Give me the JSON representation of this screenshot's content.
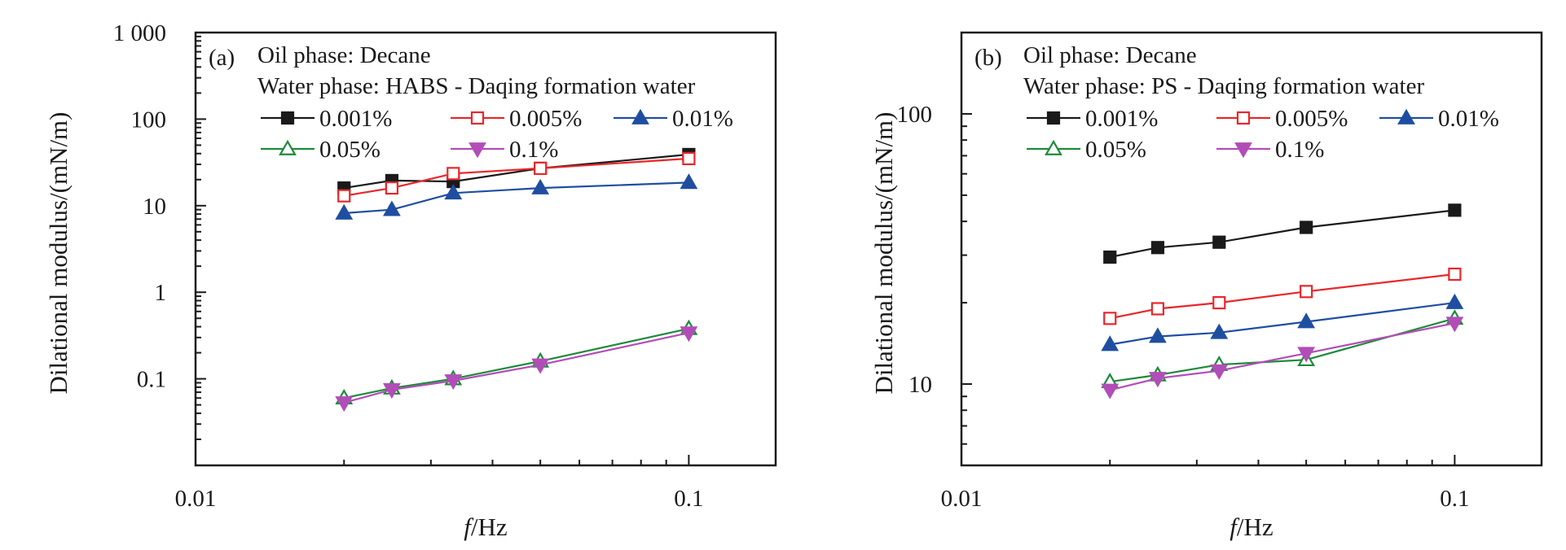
{
  "chart_data": [
    {
      "type": "line",
      "panel_label": "(a)",
      "info_lines": [
        "Oil phase: Decane",
        "Water phase: HABS - Daqing formation water"
      ],
      "xlabel_italic": "f",
      "xlabel_rest": "/Hz",
      "ylabel": "Dilational modulus/(mN/m)",
      "x_scale": "log",
      "y_scale": "log",
      "xlim": [
        0.01,
        0.15
      ],
      "ylim": [
        0.01,
        1000
      ],
      "x_ticks": [
        {
          "value": 0.01,
          "label": "0.01"
        },
        {
          "value": 0.1,
          "label": "0.1"
        }
      ],
      "y_ticks": [
        {
          "value": 0.1,
          "label": "0.1"
        },
        {
          "value": 1,
          "label": "1"
        },
        {
          "value": 10,
          "label": "10"
        },
        {
          "value": 100,
          "label": "100"
        },
        {
          "value": 1000,
          "label": "1 000"
        }
      ],
      "legend_placement": "top-left",
      "x": [
        0.02,
        0.025,
        0.0333,
        0.05,
        0.1
      ],
      "series": [
        {
          "name": "0.001%",
          "color": "#1a1a1a",
          "marker": "square-filled",
          "values": [
            16,
            19.5,
            19,
            27,
            39
          ]
        },
        {
          "name": "0.005%",
          "color": "#e8272b",
          "marker": "square-open",
          "values": [
            13,
            16,
            23.5,
            27,
            35
          ]
        },
        {
          "name": "0.01%",
          "color": "#1f4ea1",
          "marker": "triangle-up-filled",
          "values": [
            8.2,
            9,
            14,
            16,
            18.5
          ]
        },
        {
          "name": "0.05%",
          "color": "#1d8a3a",
          "marker": "triangle-up-open",
          "values": [
            0.06,
            0.078,
            0.1,
            0.16,
            0.38
          ]
        },
        {
          "name": "0.1%",
          "color": "#b24db8",
          "marker": "triangle-down-filled",
          "values": [
            0.053,
            0.075,
            0.095,
            0.145,
            0.34
          ]
        }
      ]
    },
    {
      "type": "line",
      "panel_label": "(b)",
      "info_lines": [
        "Oil phase: Decane",
        "Water phase: PS - Daqing formation water"
      ],
      "xlabel_italic": "f",
      "xlabel_rest": "/Hz",
      "ylabel": "Dilational modulus/(mN/m)",
      "x_scale": "log",
      "y_scale": "log",
      "xlim": [
        0.01,
        0.15
      ],
      "ylim": [
        5,
        200
      ],
      "x_ticks": [
        {
          "value": 0.01,
          "label": "0.01"
        },
        {
          "value": 0.1,
          "label": "0.1"
        }
      ],
      "y_ticks": [
        {
          "value": 10,
          "label": "10"
        },
        {
          "value": 100,
          "label": "100"
        }
      ],
      "legend_placement": "top-left",
      "x": [
        0.02,
        0.025,
        0.0333,
        0.05,
        0.1
      ],
      "series": [
        {
          "name": "0.001%",
          "color": "#1a1a1a",
          "marker": "square-filled",
          "values": [
            29.5,
            32,
            33.5,
            38,
            44
          ]
        },
        {
          "name": "0.005%",
          "color": "#e8272b",
          "marker": "square-open",
          "values": [
            17.5,
            19,
            20,
            22,
            25.5
          ]
        },
        {
          "name": "0.01%",
          "color": "#1f4ea1",
          "marker": "triangle-up-filled",
          "values": [
            14,
            15,
            15.5,
            17,
            20
          ]
        },
        {
          "name": "0.05%",
          "color": "#1d8a3a",
          "marker": "triangle-up-open",
          "values": [
            10.2,
            10.8,
            11.8,
            12.3,
            17.5
          ]
        },
        {
          "name": "0.1%",
          "color": "#b24db8",
          "marker": "triangle-down-filled",
          "values": [
            9.5,
            10.5,
            11.2,
            13,
            16.8
          ]
        }
      ]
    }
  ]
}
